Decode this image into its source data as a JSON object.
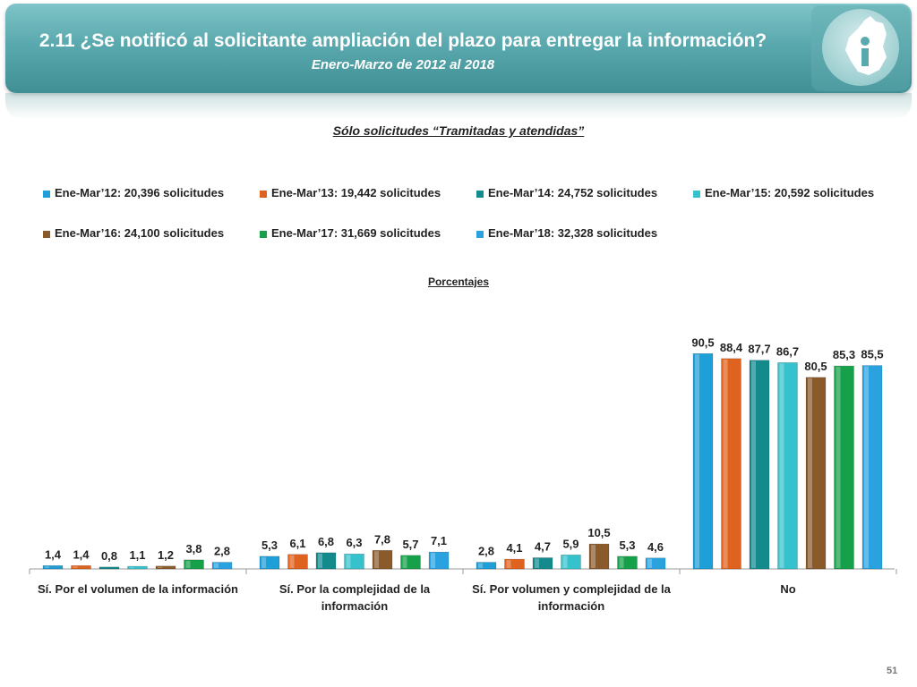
{
  "header": {
    "title": "2.11 ¿Se notificó al solicitante ampliación del plazo para entregar la información?",
    "subtitle": "Enero-Marzo de 2012 al 2018",
    "logo_icon": "cdmx-map-info-icon"
  },
  "chart_heading": "Sólo solicitudes “Tramitadas y atendidas”",
  "unit_label": "Porcentajes",
  "page_number": "51",
  "chart_data": {
    "type": "bar",
    "title": "",
    "categories": [
      "Sí. Por el volumen de la información",
      "Sí. Por la complejidad de la información",
      "Sí. Por volumen y complejidad de la información",
      "No"
    ],
    "series": [
      {
        "name": "Ene-Mar’12: 20,396 solicitudes",
        "color": "#1e9fd8",
        "values": [
          1.4,
          5.3,
          2.8,
          90.5
        ],
        "labels": [
          "1,4",
          "5,3",
          "2,8",
          "90,5"
        ]
      },
      {
        "name": "Ene-Mar’13: 19,442 solicitudes",
        "color": "#e0621f",
        "values": [
          1.4,
          6.1,
          4.1,
          88.4
        ],
        "labels": [
          "1,4",
          "6,1",
          "4,1",
          "88,4"
        ]
      },
      {
        "name": "Ene-Mar’14: 24,752 solicitudes",
        "color": "#138a8c",
        "values": [
          0.8,
          6.8,
          4.7,
          87.7
        ],
        "labels": [
          "0,8",
          "6,8",
          "4,7",
          "87,7"
        ]
      },
      {
        "name": "Ene-Mar’15: 20,592 solicitudes",
        "color": "#36c2cc",
        "values": [
          1.1,
          6.3,
          5.9,
          86.7
        ],
        "labels": [
          "1,1",
          "6,3",
          "5,9",
          "86,7"
        ]
      },
      {
        "name": "Ene-Mar’16: 24,100 solicitudes",
        "color": "#8b5a2b",
        "values": [
          1.2,
          7.8,
          10.5,
          80.5
        ],
        "labels": [
          "1,2",
          "7,8",
          "10,5",
          "80,5"
        ]
      },
      {
        "name": "Ene-Mar’17: 31,669 solicitudes",
        "color": "#16a04a",
        "values": [
          3.8,
          5.7,
          5.3,
          85.3
        ],
        "labels": [
          "3,8",
          "5,7",
          "5,3",
          "85,3"
        ]
      },
      {
        "name": "Ene-Mar’18: 32,328 solicitudes",
        "color": "#2aa2e0",
        "values": [
          2.8,
          7.1,
          4.6,
          85.5
        ],
        "labels": [
          "2,8",
          "7,1",
          "4,6",
          "85,5"
        ]
      }
    ],
    "ylim": [
      0,
      100
    ],
    "grid": false,
    "legend_position": "top"
  }
}
